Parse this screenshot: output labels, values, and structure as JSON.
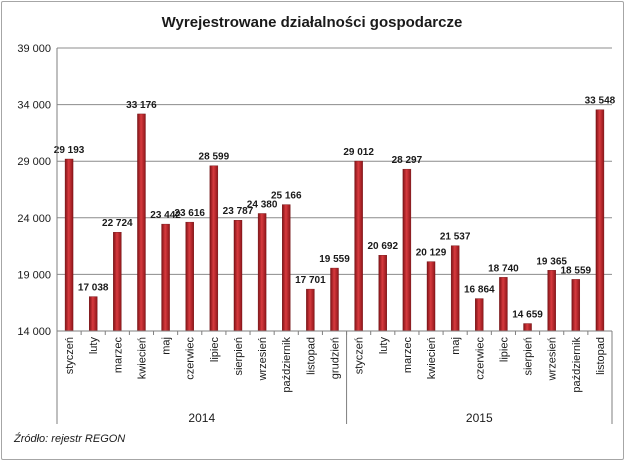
{
  "chart_data": {
    "type": "bar",
    "title": "Wyrejestrowane działalności gospodarcze",
    "source": "Źródło: rejestr REGON",
    "ylim": [
      14000,
      39000
    ],
    "yticks": [
      14000,
      19000,
      24000,
      29000,
      34000,
      39000
    ],
    "ytick_labels": [
      "14 000",
      "19 000",
      "24 000",
      "29 000",
      "34 000",
      "39 000"
    ],
    "grid": true,
    "bar_color": "#c0282d",
    "groups": [
      {
        "label": "2014",
        "count": 12
      },
      {
        "label": "2015",
        "count": 11
      }
    ],
    "categories": [
      "styczeń",
      "luty",
      "marzec",
      "kwiecień",
      "maj",
      "czerwiec",
      "lipiec",
      "sierpień",
      "wrzesień",
      "październik",
      "listopad",
      "grudzień",
      "styczeń",
      "luty",
      "marzec",
      "kwiecień",
      "maj",
      "czerwiec",
      "lipiec",
      "sierpień",
      "wrzesień",
      "październik",
      "listopad"
    ],
    "values": [
      29193,
      17038,
      22724,
      33176,
      23442,
      23616,
      28599,
      23787,
      24380,
      25166,
      17701,
      19559,
      29012,
      20692,
      28297,
      20129,
      21537,
      16864,
      18740,
      14659,
      19365,
      18559,
      33548
    ],
    "value_labels": [
      "29 193",
      "17 038",
      "22 724",
      "33 176",
      "23 442",
      "23 616",
      "28 599",
      "23 787",
      "24 380",
      "25 166",
      "17 701",
      "19 559",
      "29 012",
      "20 692",
      "28 297",
      "20 129",
      "21 537",
      "16 864",
      "18 740",
      "14 659",
      "19 365",
      "18 559",
      "33 548"
    ]
  }
}
